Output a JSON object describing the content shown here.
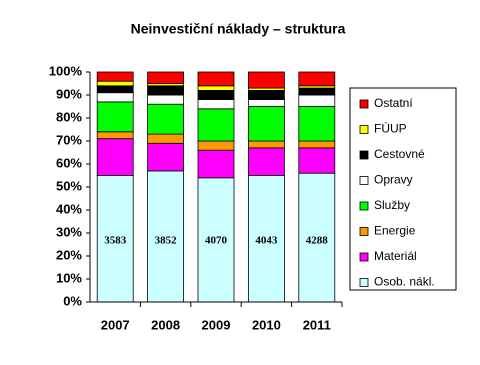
{
  "chart_data": {
    "type": "stacked_bar_percent",
    "title": "Neinvestiční náklady – struktura",
    "categories": [
      "2007",
      "2008",
      "2009",
      "2010",
      "2011"
    ],
    "series": [
      {
        "name": "Osob. nákl.",
        "color": "#ccffff",
        "values": [
          55,
          57,
          54,
          55,
          56
        ]
      },
      {
        "name": "Materiál",
        "color": "#ff00ff",
        "values": [
          16,
          12,
          12,
          12,
          11
        ]
      },
      {
        "name": "Energie",
        "color": "#ff9900",
        "values": [
          3,
          4,
          4,
          3,
          3
        ]
      },
      {
        "name": "Služby",
        "color": "#00ff00",
        "values": [
          13,
          13,
          14,
          15,
          15
        ]
      },
      {
        "name": "Opravy",
        "color": "#ffffff",
        "values": [
          4,
          4,
          4,
          3,
          5
        ]
      },
      {
        "name": "Cestovné",
        "color": "#000000",
        "values": [
          3,
          4,
          4,
          4,
          3
        ]
      },
      {
        "name": "FÚUP",
        "color": "#ffff00",
        "values": [
          2,
          1,
          2,
          1,
          1
        ]
      },
      {
        "name": "Ostatní",
        "color": "#ff0000",
        "values": [
          4,
          5,
          6,
          7,
          6
        ]
      }
    ],
    "annotations": [
      3583,
      3852,
      4070,
      4043,
      4288
    ],
    "ylim": [
      0,
      100
    ],
    "yticks": [
      {
        "value": 0,
        "label": "0%"
      },
      {
        "value": 10,
        "label": "10%"
      },
      {
        "value": 20,
        "label": "20%"
      },
      {
        "value": 30,
        "label": "30%"
      },
      {
        "value": 40,
        "label": "40%"
      },
      {
        "value": 50,
        "label": "50%"
      },
      {
        "value": 60,
        "label": "60%"
      },
      {
        "value": 70,
        "label": "70%"
      },
      {
        "value": 80,
        "label": "80%"
      },
      {
        "value": 90,
        "label": "90%"
      },
      {
        "value": 100,
        "label": "100%"
      }
    ],
    "legend": "right"
  }
}
